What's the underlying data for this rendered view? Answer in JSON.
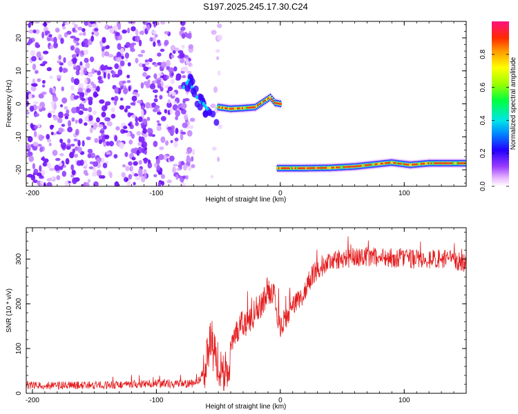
{
  "figure": {
    "title": "S197.2025.245.17.30.C24"
  },
  "colorbar": {
    "label": "Normalized spectral amplitude",
    "ticks": [
      "0.0",
      "0.2",
      "0.4",
      "0.6",
      "0.8"
    ],
    "tick_values": [
      0.0,
      0.2,
      0.4,
      0.6,
      0.8
    ]
  },
  "chart_data": [
    {
      "type": "heatmap",
      "title": "S197.2025.245.17.30.C24",
      "xlabel": "Height of straight line (km)",
      "ylabel": "Frequency (Hz)",
      "xlim": [
        -205,
        150
      ],
      "ylim": [
        -25,
        25
      ],
      "xticks": [
        -200,
        -100,
        0,
        100
      ],
      "xtick_labels": [
        "-200",
        "-100",
        "0",
        "100"
      ],
      "yticks": [
        -20,
        -10,
        0,
        10,
        20
      ],
      "ytick_labels": [
        "-20",
        "-10",
        "0",
        "10",
        "20"
      ],
      "colorscale": "rainbow",
      "clim": [
        0,
        1
      ],
      "features": [
        {
          "name": "noise-field",
          "x_range": [
            -205,
            -70
          ],
          "y_range": [
            -25,
            25
          ],
          "amplitude": 0.15
        },
        {
          "name": "noise-strip",
          "x_range": [
            -55,
            -48
          ],
          "y_range": [
            -25,
            25
          ],
          "amplitude": 0.05
        },
        {
          "name": "signal-onset",
          "points": [
            [
              -78,
              5
            ],
            [
              -74,
              7
            ],
            [
              -70,
              4
            ],
            [
              -66,
              1
            ],
            [
              -62,
              0
            ],
            [
              -58,
              -2
            ],
            [
              -54,
              -5
            ]
          ],
          "amplitude": 0.5
        },
        {
          "name": "upper-track",
          "points": [
            [
              -50,
              -1
            ],
            [
              -40,
              -1.5
            ],
            [
              -30,
              -1.3
            ],
            [
              -20,
              -1
            ],
            [
              -12,
              1
            ],
            [
              -8,
              2
            ],
            [
              -4,
              0.3
            ],
            [
              0,
              0
            ]
          ],
          "amplitude": 0.9
        },
        {
          "name": "lower-track",
          "points": [
            [
              -2,
              -19.5
            ],
            [
              20,
              -19.5
            ],
            [
              40,
              -19.4
            ],
            [
              60,
              -19
            ],
            [
              75,
              -18.4
            ],
            [
              90,
              -17.8
            ],
            [
              105,
              -18.5
            ],
            [
              120,
              -18
            ],
            [
              150,
              -18
            ]
          ],
          "amplitude": 0.95
        }
      ]
    },
    {
      "type": "line",
      "title": "",
      "xlabel": "Height of straight line (km)",
      "ylabel": "SNR (10 * v/v)",
      "xlim": [
        -205,
        150
      ],
      "ylim": [
        0,
        370
      ],
      "xticks": [
        -200,
        -100,
        0,
        100
      ],
      "xtick_labels": [
        "-200",
        "-100",
        "0",
        "100"
      ],
      "yticks": [
        0,
        100,
        200,
        300
      ],
      "ytick_labels": [
        "0",
        "100",
        "200",
        "300"
      ],
      "series": [
        {
          "name": "SNR",
          "color": "#e41a1c",
          "x": [
            -205,
            -180,
            -150,
            -120,
            -100,
            -85,
            -70,
            -65,
            -60,
            -57,
            -55,
            -50,
            -42,
            -40,
            -35,
            -30,
            -25,
            -20,
            -15,
            -10,
            -5,
            -3,
            0,
            5,
            10,
            15,
            20,
            25,
            30,
            35,
            40,
            50,
            60,
            80,
            100,
            120,
            140,
            150
          ],
          "values": [
            18,
            17,
            18,
            20,
            22,
            20,
            22,
            30,
            60,
            120,
            95,
            70,
            20,
            120,
            135,
            160,
            155,
            185,
            200,
            230,
            220,
            190,
            150,
            170,
            195,
            205,
            230,
            260,
            275,
            285,
            295,
            300,
            305,
            305,
            300,
            300,
            298,
            290
          ]
        }
      ]
    }
  ]
}
